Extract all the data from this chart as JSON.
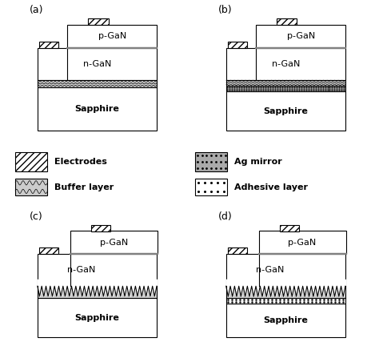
{
  "fig_width": 4.74,
  "fig_height": 4.32,
  "dpi": 100,
  "bg_color": "#ffffff",
  "panels": [
    "(a)",
    "(b)",
    "(c)",
    "(d)"
  ],
  "panel_labels_fontsize": 9,
  "layer_label_fontsize": 8,
  "legend_fontsize": 8,
  "sapphire_label": "Sapphire",
  "ngan_label": "n-GaN",
  "pgan_label": "p-GaN",
  "legend_electrodes": "Electrodes",
  "legend_buffer": "Buffer layer",
  "legend_agmirror": "Ag mirror",
  "legend_adhesive": "Adhesive layer"
}
